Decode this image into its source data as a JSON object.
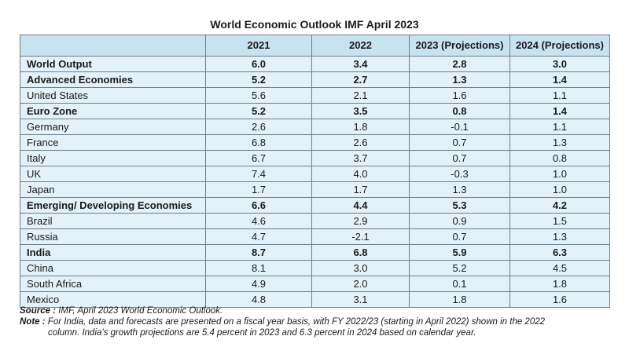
{
  "title": "World Economic Outlook IMF April 2023",
  "table": {
    "headers": [
      "",
      "2021",
      "2022",
      "2023 (Projections)",
      "2024 (Projections)"
    ],
    "rows": [
      {
        "name": "World Output",
        "bold": true,
        "values": [
          "6.0",
          "3.4",
          "2.8",
          "3.0"
        ]
      },
      {
        "name": "Advanced Economies",
        "bold": true,
        "values": [
          "5.2",
          "2.7",
          "1.3",
          "1.4"
        ]
      },
      {
        "name": "United States",
        "bold": false,
        "values": [
          "5.6",
          "2.1",
          "1.6",
          "1.1"
        ]
      },
      {
        "name": "Euro Zone",
        "bold": true,
        "values": [
          "5.2",
          "3.5",
          "0.8",
          "1.4"
        ]
      },
      {
        "name": "Germany",
        "bold": false,
        "values": [
          "2.6",
          "1.8",
          "-0.1",
          "1.1"
        ]
      },
      {
        "name": "France",
        "bold": false,
        "values": [
          "6.8",
          "2.6",
          "0.7",
          "1.3"
        ]
      },
      {
        "name": "Italy",
        "bold": false,
        "values": [
          "6.7",
          "3.7",
          "0.7",
          "0.8"
        ]
      },
      {
        "name": "UK",
        "bold": false,
        "values": [
          "7.4",
          "4.0",
          "-0.3",
          "1.0"
        ]
      },
      {
        "name": "Japan",
        "bold": false,
        "values": [
          "1.7",
          "1.7",
          "1.3",
          "1.0"
        ]
      },
      {
        "name": "Emerging/ Developing Economies",
        "bold": true,
        "values": [
          "6.6",
          "4.4",
          "5.3",
          "4.2"
        ]
      },
      {
        "name": "Brazil",
        "bold": false,
        "values": [
          "4.6",
          "2.9",
          "0.9",
          "1.5"
        ]
      },
      {
        "name": "Russia",
        "bold": false,
        "values": [
          "4.7",
          "-2.1",
          "0.7",
          "1.3"
        ]
      },
      {
        "name": "India",
        "bold": true,
        "values": [
          "8.7",
          "6.8",
          "5.9",
          "6.3"
        ]
      },
      {
        "name": "China",
        "bold": false,
        "values": [
          "8.1",
          "3.0",
          "5.2",
          "4.5"
        ]
      },
      {
        "name": "South Africa",
        "bold": false,
        "values": [
          "4.9",
          "2.0",
          "0.1",
          "1.8"
        ]
      },
      {
        "name": "Mexico",
        "bold": false,
        "values": [
          "4.8",
          "3.1",
          "1.8",
          "1.6"
        ]
      }
    ]
  },
  "source": {
    "label": "Source :",
    "text": " IMF, April 2023 World Economic Outlook."
  },
  "note": {
    "label": "Note :",
    "line1": " For India, data and forecasts are presented on a fiscal year basis, with FY 2022/23 (starting in April 2022) shown in the 2022",
    "line2": "column. India's growth projections are 5.4 percent in 2023 and 6.3 percent in 2024 based on calendar year."
  }
}
